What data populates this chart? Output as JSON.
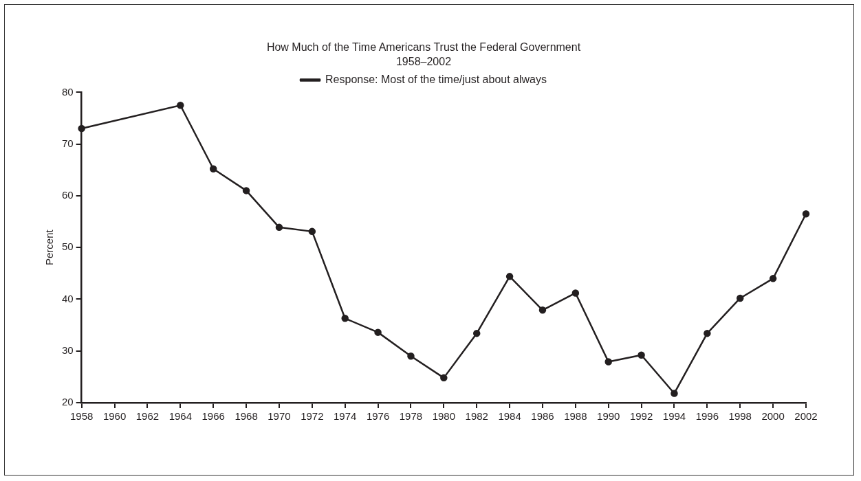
{
  "chart_data": {
    "type": "line",
    "title": "How Much of the Time Americans Trust the Federal Government",
    "subtitle": "1958–2002",
    "ylabel": "Percent",
    "x": [
      1958,
      1964,
      1966,
      1968,
      1970,
      1972,
      1974,
      1976,
      1978,
      1980,
      1982,
      1984,
      1986,
      1988,
      1990,
      1992,
      1994,
      1996,
      1998,
      2000,
      2002
    ],
    "series": [
      {
        "name": "Response: Most of the time/just about always",
        "color": "#231f20",
        "values": [
          73.0,
          77.5,
          65.2,
          61.0,
          53.9,
          53.1,
          36.3,
          33.6,
          29.0,
          24.8,
          33.4,
          44.4,
          37.9,
          41.2,
          27.9,
          29.2,
          21.8,
          33.4,
          40.2,
          44.0,
          56.5
        ]
      }
    ],
    "xlim": [
      1958,
      2002
    ],
    "xticks": [
      1958,
      1960,
      1962,
      1964,
      1966,
      1968,
      1970,
      1972,
      1974,
      1976,
      1978,
      1980,
      1982,
      1984,
      1986,
      1988,
      1990,
      1992,
      1994,
      1996,
      1998,
      2000,
      2002
    ],
    "ylim": [
      20,
      80
    ],
    "yticks": [
      20,
      30,
      40,
      50,
      60,
      70,
      80
    ],
    "grid": false,
    "legend": "top",
    "marker": "circle",
    "line_style": "solid"
  }
}
